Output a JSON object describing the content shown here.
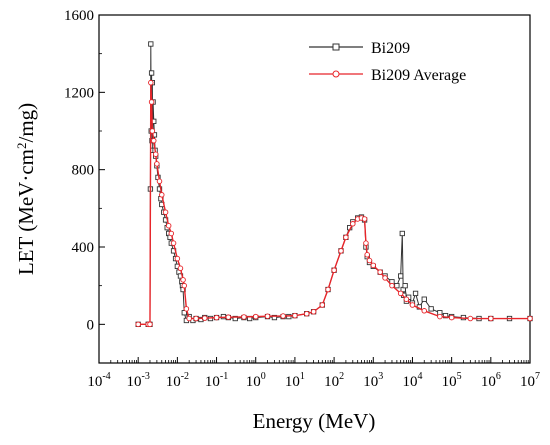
{
  "chart_data": {
    "type": "line",
    "title": "",
    "xlabel": "Energy (MeV)",
    "ylabel_main": "LET (MeV·cm",
    "ylabel_sup": "2",
    "ylabel_tail": "/mg)",
    "xscale": "log",
    "xlim": [
      0.0001,
      10000000
    ],
    "ylim": [
      -200,
      1600
    ],
    "x_ticks": [
      {
        "base": "10",
        "exp": "-4",
        "value": 0.0001
      },
      {
        "base": "10",
        "exp": "-3",
        "value": 0.001
      },
      {
        "base": "10",
        "exp": "-2",
        "value": 0.01
      },
      {
        "base": "10",
        "exp": "-1",
        "value": 0.1
      },
      {
        "base": "10",
        "exp": "0",
        "value": 1
      },
      {
        "base": "10",
        "exp": "1",
        "value": 10
      },
      {
        "base": "10",
        "exp": "2",
        "value": 100
      },
      {
        "base": "10",
        "exp": "3",
        "value": 1000
      },
      {
        "base": "10",
        "exp": "4",
        "value": 10000
      },
      {
        "base": "10",
        "exp": "5",
        "value": 100000
      },
      {
        "base": "10",
        "exp": "6",
        "value": 1000000
      },
      {
        "base": "10",
        "exp": "7",
        "value": 10000000
      }
    ],
    "y_ticks": [
      "0",
      "400",
      "800",
      "1200",
      "1600"
    ],
    "y_tick_values": [
      0,
      400,
      800,
      1200,
      1600
    ],
    "legend_position": "top-right",
    "grid": false,
    "series": [
      {
        "name": "Bi209",
        "color": "#333333",
        "marker": "open-square",
        "x": [
          0.001,
          0.0018,
          0.0019,
          0.002,
          0.00205,
          0.0021,
          0.00215,
          0.0022,
          0.00225,
          0.0023,
          0.00235,
          0.0024,
          0.0025,
          0.0026,
          0.0027,
          0.0028,
          0.003,
          0.0032,
          0.0035,
          0.0038,
          0.004,
          0.0045,
          0.005,
          0.0055,
          0.006,
          0.0065,
          0.007,
          0.008,
          0.009,
          0.01,
          0.011,
          0.012,
          0.013,
          0.0135,
          0.014,
          0.015,
          0.017,
          0.02,
          0.025,
          0.03,
          0.04,
          0.05,
          0.07,
          0.1,
          0.15,
          0.2,
          0.3,
          0.5,
          0.7,
          1,
          2,
          3,
          5,
          7,
          10,
          20,
          30,
          50,
          70,
          100,
          150,
          200,
          250,
          300,
          400,
          500,
          600,
          650,
          700,
          800,
          1000,
          1500,
          2000,
          3000,
          4000,
          5000,
          5500,
          5800,
          6000,
          6500,
          7000,
          8000,
          10000,
          12000,
          15000,
          20000,
          30000,
          50000,
          70000,
          100000,
          200000,
          500000,
          1000000,
          3000000,
          10000000
        ],
        "y": [
          0,
          0,
          0,
          0,
          700,
          1450,
          1000,
          1300,
          950,
          1250,
          900,
          1150,
          1050,
          980,
          900,
          870,
          820,
          760,
          700,
          650,
          620,
          580,
          540,
          500,
          470,
          450,
          420,
          380,
          340,
          300,
          270,
          250,
          220,
          200,
          180,
          60,
          20,
          40,
          20,
          30,
          25,
          35,
          30,
          35,
          40,
          35,
          30,
          35,
          30,
          35,
          40,
          35,
          40,
          40,
          45,
          55,
          65,
          100,
          180,
          280,
          380,
          450,
          500,
          530,
          550,
          555,
          540,
          400,
          350,
          320,
          300,
          270,
          250,
          220,
          200,
          250,
          470,
          180,
          150,
          200,
          120,
          140,
          110,
          160,
          90,
          130,
          80,
          60,
          45,
          40,
          35,
          30,
          30,
          30,
          30
        ]
      },
      {
        "name": "Bi209 Average",
        "color": "#e8252a",
        "marker": "open-circle",
        "x": [
          0.001,
          0.0018,
          0.002,
          0.0021,
          0.0022,
          0.0023,
          0.0025,
          0.0028,
          0.003,
          0.0035,
          0.004,
          0.005,
          0.006,
          0.007,
          0.008,
          0.01,
          0.012,
          0.014,
          0.015,
          0.017,
          0.02,
          0.03,
          0.05,
          0.1,
          0.2,
          0.5,
          1,
          2,
          5,
          10,
          20,
          30,
          50,
          70,
          100,
          150,
          200,
          300,
          400,
          500,
          600,
          650,
          700,
          800,
          1000,
          1500,
          2000,
          3000,
          5000,
          7000,
          10000,
          20000,
          50000,
          100000,
          300000,
          1000000,
          10000000
        ],
        "y": [
          0,
          0,
          0,
          1250,
          1150,
          1000,
          950,
          880,
          830,
          740,
          670,
          580,
          510,
          470,
          420,
          340,
          290,
          230,
          200,
          80,
          30,
          30,
          32,
          35,
          37,
          38,
          40,
          42,
          43,
          45,
          55,
          65,
          100,
          180,
          280,
          380,
          450,
          520,
          545,
          550,
          545,
          420,
          360,
          330,
          305,
          270,
          240,
          200,
          160,
          130,
          100,
          70,
          40,
          35,
          30,
          30,
          30
        ]
      }
    ]
  }
}
